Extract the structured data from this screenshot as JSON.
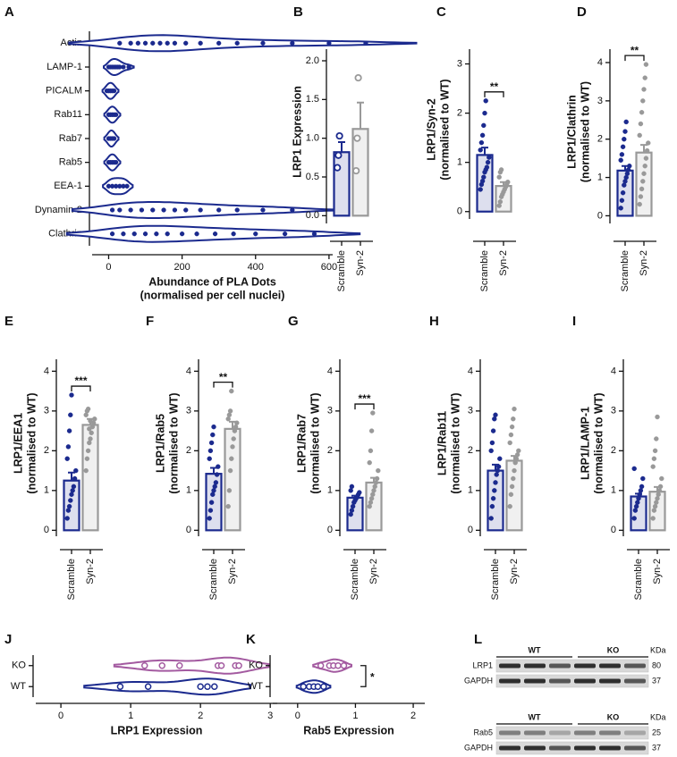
{
  "chart_data": [
    {
      "panel": "A",
      "type": "violin",
      "categories": [
        "Actin",
        "LAMP-1",
        "PICALM",
        "Rab11",
        "Rab7",
        "Rab5",
        "EEA-1",
        "Dynamin-2",
        "Clathrin"
      ],
      "points": [
        [
          30,
          60,
          80,
          100,
          120,
          140,
          160,
          180,
          210,
          250,
          300,
          350,
          420,
          500,
          600,
          700
        ],
        [
          0,
          5,
          10,
          15,
          20,
          25,
          30,
          40,
          55
        ],
        [
          -5,
          0,
          5,
          10,
          15
        ],
        [
          0,
          5,
          10,
          15,
          20
        ],
        [
          0,
          5,
          10,
          15
        ],
        [
          0,
          5,
          10,
          15,
          20
        ],
        [
          0,
          10,
          20,
          30,
          40,
          50
        ],
        [
          10,
          30,
          60,
          90,
          120,
          150,
          180,
          210,
          250,
          300,
          350,
          420,
          500
        ],
        [
          10,
          40,
          70,
          100,
          130,
          160,
          200,
          240,
          290,
          340,
          400,
          480,
          560
        ]
      ],
      "color": "#1b2a8e",
      "xlim": [
        -45,
        610
      ],
      "xticks": [
        0,
        200,
        400,
        600
      ],
      "xlabel": [
        "Abundance of PLA Dots",
        "(normalised per cell nuclei)"
      ]
    },
    {
      "panel": "B",
      "type": "bar",
      "ylabel": "LRP1 Expression",
      "categories": [
        "Scramble",
        "Syn-2"
      ],
      "values": [
        0.82,
        1.12
      ],
      "errors": [
        0.13,
        0.34
      ],
      "points": [
        [
          0.62,
          0.78,
          1.03
        ],
        [
          0.58,
          1.0,
          1.78
        ]
      ],
      "colors": [
        "#1b2a8e",
        "#999999"
      ],
      "marker": "open",
      "ylim": [
        -0.1,
        2.15
      ],
      "yticks": [
        {
          "value": 0,
          "label": "0.0"
        },
        {
          "value": 0.5,
          "label": "0.5"
        },
        {
          "value": 1,
          "label": "1.0"
        },
        {
          "value": 1.5,
          "label": "1.5"
        },
        {
          "value": 2,
          "label": "2.0"
        }
      ]
    },
    {
      "panel": "C",
      "type": "bar",
      "ylabel": [
        "LRP1/Syn-2",
        "(normalised to WT)"
      ],
      "categories": [
        "Scramble",
        "Syn-2"
      ],
      "values": [
        1.15,
        0.52
      ],
      "errors": [
        0.15,
        0.08
      ],
      "points": [
        [
          0.45,
          0.55,
          0.62,
          0.7,
          0.8,
          0.85,
          0.9,
          1.0,
          1.1,
          1.25,
          1.4,
          1.55,
          1.75,
          2.0,
          2.25
        ],
        [
          0.12,
          0.2,
          0.3,
          0.35,
          0.4,
          0.45,
          0.5,
          0.55,
          0.6,
          0.7,
          0.8,
          0.85
        ]
      ],
      "colors": [
        "#1b2a8e",
        "#999999"
      ],
      "ylim": [
        -0.15,
        3.3
      ],
      "yticks": [
        0,
        1,
        2,
        3
      ],
      "significance": "**"
    },
    {
      "panel": "D",
      "type": "bar",
      "ylabel": [
        "LRP1/Clathrin",
        "(normalised to WT)"
      ],
      "categories": [
        "Scramble",
        "Syn-2"
      ],
      "values": [
        1.18,
        1.65
      ],
      "errors": [
        0.12,
        0.2
      ],
      "points": [
        [
          0.2,
          0.4,
          0.6,
          0.8,
          0.9,
          1.0,
          1.1,
          1.2,
          1.3,
          1.45,
          1.6,
          1.8,
          2.0,
          2.2,
          2.45
        ],
        [
          0.3,
          0.5,
          0.7,
          0.9,
          1.1,
          1.3,
          1.5,
          1.7,
          1.9,
          2.1,
          2.4,
          2.7,
          3.0,
          3.3,
          3.6,
          3.95
        ]
      ],
      "colors": [
        "#1b2a8e",
        "#999999"
      ],
      "ylim": [
        -0.2,
        4.35
      ],
      "yticks": [
        0,
        1,
        2,
        3,
        4
      ],
      "significance": "**"
    },
    {
      "panel": "E",
      "type": "bar",
      "ylabel": [
        "LRP1/EEA1",
        "(normalised to WT)"
      ],
      "categories": [
        "Scramble",
        "Syn-2"
      ],
      "values": [
        1.25,
        2.65
      ],
      "errors": [
        0.2,
        0.15
      ],
      "points": [
        [
          0.3,
          0.5,
          0.6,
          0.75,
          0.9,
          1.0,
          1.1,
          1.3,
          1.5,
          1.8,
          2.1,
          2.5,
          2.9,
          3.4
        ],
        [
          1.5,
          1.8,
          2.0,
          2.2,
          2.3,
          2.45,
          2.6,
          2.7,
          2.8,
          2.9,
          3.0,
          3.05,
          2.55,
          2.75
        ]
      ],
      "colors": [
        "#1b2a8e",
        "#999999"
      ],
      "ylim": [
        -0.15,
        4.3
      ],
      "yticks": [
        0,
        1,
        2,
        3,
        4
      ],
      "significance": "***"
    },
    {
      "panel": "F",
      "type": "bar",
      "ylabel": [
        "LRP1/Rab5",
        "(normalised to WT)"
      ],
      "categories": [
        "Scramble",
        "Syn-2"
      ],
      "values": [
        1.42,
        2.55
      ],
      "errors": [
        0.15,
        0.18
      ],
      "points": [
        [
          0.3,
          0.5,
          0.7,
          0.9,
          1.0,
          1.1,
          1.2,
          1.4,
          1.6,
          1.8,
          2.0,
          2.2,
          2.4,
          2.6
        ],
        [
          0.6,
          1.0,
          1.5,
          1.8,
          2.1,
          2.3,
          2.5,
          2.6,
          2.7,
          2.8,
          2.9,
          3.0,
          3.5
        ]
      ],
      "colors": [
        "#1b2a8e",
        "#999999"
      ],
      "ylim": [
        -0.15,
        4.3
      ],
      "yticks": [
        0,
        1,
        2,
        3,
        4
      ],
      "significance": "**"
    },
    {
      "panel": "G",
      "type": "bar",
      "ylabel": [
        "LRP1/Rab7",
        "(normalised to WT)"
      ],
      "categories": [
        "Scramble",
        "Syn-2"
      ],
      "values": [
        0.82,
        1.2
      ],
      "errors": [
        0.05,
        0.12
      ],
      "points": [
        [
          0.4,
          0.5,
          0.6,
          0.7,
          0.75,
          0.8,
          0.85,
          0.9,
          0.95,
          1.0,
          1.1
        ],
        [
          0.6,
          0.7,
          0.8,
          0.9,
          1.0,
          1.1,
          1.2,
          1.3,
          1.5,
          1.7,
          2.0,
          2.5,
          2.95
        ]
      ],
      "colors": [
        "#1b2a8e",
        "#999999"
      ],
      "ylim": [
        -0.15,
        4.3
      ],
      "yticks": [
        0,
        1,
        2,
        3,
        4
      ],
      "significance": "***"
    },
    {
      "panel": "H",
      "type": "bar",
      "ylabel": [
        "LRP1/Rab11",
        "(normalised to WT)"
      ],
      "categories": [
        "Scramble",
        "Syn-2"
      ],
      "values": [
        1.5,
        1.75
      ],
      "errors": [
        0.15,
        0.12
      ],
      "points": [
        [
          0.3,
          0.6,
          0.8,
          1.0,
          1.2,
          1.4,
          1.5,
          1.6,
          1.8,
          2.0,
          2.2,
          2.5,
          2.8,
          2.9
        ],
        [
          0.6,
          0.9,
          1.1,
          1.3,
          1.5,
          1.7,
          1.8,
          1.9,
          2.0,
          2.2,
          2.4,
          2.6,
          2.8,
          3.05
        ]
      ],
      "colors": [
        "#1b2a8e",
        "#999999"
      ],
      "ylim": [
        -0.15,
        4.3
      ],
      "yticks": [
        0,
        1,
        2,
        3,
        4
      ]
    },
    {
      "panel": "I",
      "type": "bar",
      "ylabel": [
        "LRP1/LAMP-1",
        "(normalised to WT)"
      ],
      "categories": [
        "Scramble",
        "Syn-2"
      ],
      "values": [
        0.85,
        0.97
      ],
      "errors": [
        0.07,
        0.12
      ],
      "points": [
        [
          0.3,
          0.5,
          0.6,
          0.7,
          0.8,
          0.9,
          1.0,
          1.1,
          1.3,
          1.55
        ],
        [
          0.3,
          0.5,
          0.6,
          0.7,
          0.8,
          0.9,
          1.0,
          1.1,
          1.3,
          1.6,
          1.8,
          2.0,
          2.3,
          2.85
        ]
      ],
      "colors": [
        "#1b2a8e",
        "#999999"
      ],
      "ylim": [
        -0.15,
        4.3
      ],
      "yticks": [
        0,
        1,
        2,
        3,
        4
      ]
    },
    {
      "panel": "J",
      "type": "violin",
      "categories": [
        "KO",
        "WT"
      ],
      "points": [
        [
          1.2,
          1.45,
          1.7,
          2.25,
          2.3,
          2.5,
          2.55
        ],
        [
          0.85,
          1.25,
          2.0,
          2.1,
          2.2
        ]
      ],
      "colors": [
        "#a35aa0",
        "#1b2a8e"
      ],
      "marker": "open",
      "xlim": [
        -0.36,
        3.1
      ],
      "xticks": [
        0,
        1,
        2,
        3
      ],
      "xlabel": "LRP1 Expression"
    },
    {
      "panel": "K",
      "type": "violin",
      "categories": [
        "KO",
        "WT"
      ],
      "points": [
        [
          0.4,
          0.55,
          0.62,
          0.7,
          0.8
        ],
        [
          0.1,
          0.2,
          0.28,
          0.35,
          0.45
        ]
      ],
      "colors": [
        "#a35aa0",
        "#1b2a8e"
      ],
      "marker": "open",
      "xlim": [
        -0.43,
        2.2
      ],
      "xticks": [
        0,
        1,
        2
      ],
      "xlabel": "Rab5 Expression",
      "significance": "*"
    }
  ],
  "blot": {
    "panel": "L",
    "blots": [
      {
        "groups": [
          "WT",
          "KO"
        ],
        "unit": "KDa",
        "rows": [
          {
            "label": "LRP1",
            "size": 80
          },
          {
            "label": "GAPDH",
            "size": 37
          }
        ]
      },
      {
        "groups": [
          "WT",
          "KO"
        ],
        "unit": "KDa",
        "rows": [
          {
            "label": "Rab5",
            "size": 25
          },
          {
            "label": "GAPDH",
            "size": 37
          }
        ]
      }
    ]
  }
}
